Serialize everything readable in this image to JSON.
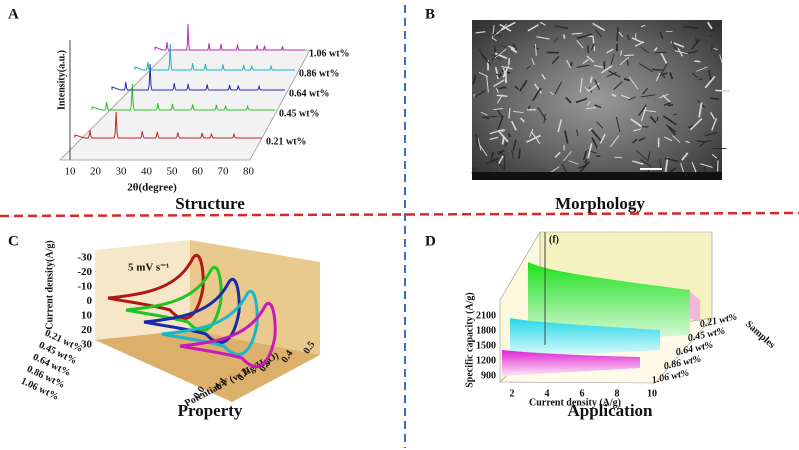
{
  "panels": [
    {
      "letter": "A",
      "caption": "Structure",
      "y_label": "Intensity(a.u.)",
      "x_label": "2θ(degree)",
      "x_ticks": [
        "10",
        "20",
        "30",
        "40",
        "50",
        "60",
        "70",
        "80"
      ],
      "series_labels": [
        "0.21 wt%",
        "0.45 wt%",
        "0.64 wt%",
        "0.86 wt%",
        "1.06 wt%"
      ]
    },
    {
      "letter": "B",
      "caption": "Morphology"
    },
    {
      "letter": "C",
      "caption": "Property",
      "y_label": "Current density(A/g)",
      "x_label": "Potential/V (vs Hg/HgO)",
      "annotation": "5 mV s⁻¹",
      "y_ticks": [
        "-30",
        "-20",
        "-10",
        "0",
        "10",
        "20",
        "30"
      ],
      "x_ticks": [
        "0.0",
        "0.1",
        "0.2",
        "0.3",
        "0.4",
        "0.5"
      ],
      "series_labels": [
        "0.21 wt%",
        "0.45 wt%",
        "0.64 wt%",
        "0.86 wt%",
        "1.06 wt%"
      ]
    },
    {
      "letter": "D",
      "caption": "Application",
      "y_label": "Specific capacity (A/g)",
      "x_label": "Current density (A/g)",
      "z_label": "Samples",
      "annotation": "(f)",
      "y_ticks": [
        "900",
        "1200",
        "1500",
        "1800",
        "2100"
      ],
      "x_ticks": [
        "2",
        "4",
        "6",
        "8",
        "10"
      ],
      "series_labels": [
        "0.21 wt%",
        "0.45 wt%",
        "0.64 wt%",
        "0.86 wt%",
        "1.06 wt%"
      ]
    }
  ]
}
